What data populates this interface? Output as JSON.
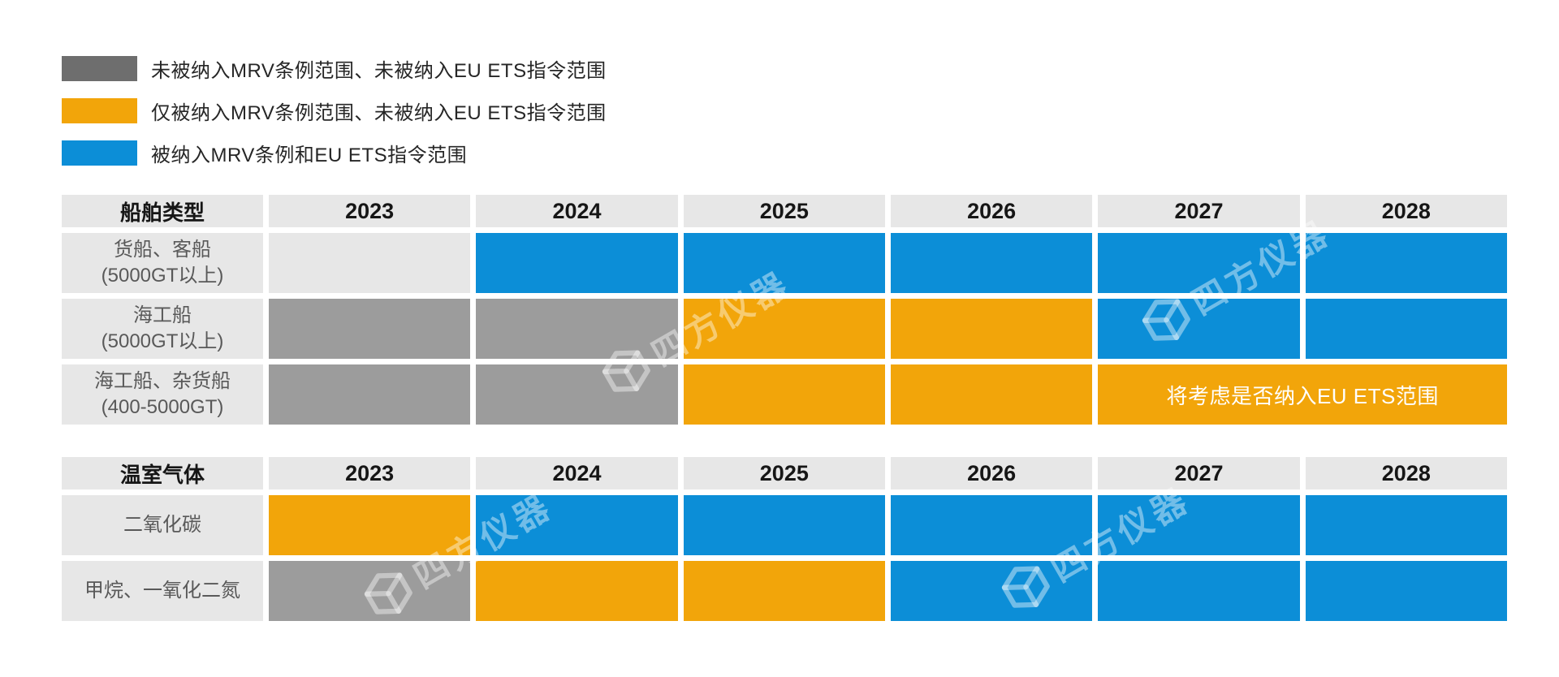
{
  "colors": {
    "neither": "#9C9C9C",
    "mrv_only": "#F2A50A",
    "mrv_and_ets": "#0C8ED7",
    "blank": "#E7E7E7",
    "legend_neither": "#6E6E6E",
    "header_bg": "#E7E7E7",
    "label_text": "#595959"
  },
  "legend": [
    {
      "key": "neither",
      "swatch_color": "#6E6E6E",
      "label": "未被纳入MRV条例范围、未被纳入EU ETS指令范围"
    },
    {
      "key": "mrv_only",
      "swatch_color": "#F2A50A",
      "label": "仅被纳入MRV条例范围、未被纳入EU ETS指令范围"
    },
    {
      "key": "mrv_and_ets",
      "swatch_color": "#0C8ED7",
      "label": "被纳入MRV条例和EU ETS指令范围"
    }
  ],
  "chart_data": [
    {
      "type": "table",
      "title": "船舶类型",
      "x": [
        "2023",
        "2024",
        "2025",
        "2026",
        "2027",
        "2028"
      ],
      "rows": [
        {
          "label": "货船、客船\n(5000GT以上)",
          "cells": [
            {
              "status": "blank"
            },
            {
              "status": "mrv_and_ets"
            },
            {
              "status": "mrv_and_ets"
            },
            {
              "status": "mrv_and_ets"
            },
            {
              "status": "mrv_and_ets"
            },
            {
              "status": "mrv_and_ets"
            }
          ]
        },
        {
          "label": "海工船\n(5000GT以上)",
          "cells": [
            {
              "status": "neither"
            },
            {
              "status": "neither"
            },
            {
              "status": "mrv_only"
            },
            {
              "status": "mrv_only"
            },
            {
              "status": "mrv_and_ets"
            },
            {
              "status": "mrv_and_ets"
            }
          ]
        },
        {
          "label": "海工船、杂货船\n(400-5000GT)",
          "cells": [
            {
              "status": "neither"
            },
            {
              "status": "neither"
            },
            {
              "status": "mrv_only"
            },
            {
              "status": "mrv_only"
            },
            {
              "status": "mrv_only",
              "colspan": 2,
              "note": "将考虑是否纳入EU ETS范围"
            }
          ]
        }
      ]
    },
    {
      "type": "table",
      "title": "温室气体",
      "x": [
        "2023",
        "2024",
        "2025",
        "2026",
        "2027",
        "2028"
      ],
      "rows": [
        {
          "label": "二氧化碳",
          "cells": [
            {
              "status": "mrv_only"
            },
            {
              "status": "mrv_and_ets"
            },
            {
              "status": "mrv_and_ets"
            },
            {
              "status": "mrv_and_ets"
            },
            {
              "status": "mrv_and_ets"
            },
            {
              "status": "mrv_and_ets"
            }
          ]
        },
        {
          "label": "甲烷、一氧化二氮",
          "cells": [
            {
              "status": "neither"
            },
            {
              "status": "mrv_only"
            },
            {
              "status": "mrv_only"
            },
            {
              "status": "mrv_and_ets"
            },
            {
              "status": "mrv_and_ets"
            },
            {
              "status": "mrv_and_ets"
            }
          ]
        }
      ]
    }
  ],
  "watermark": {
    "text": "四方仪器"
  }
}
